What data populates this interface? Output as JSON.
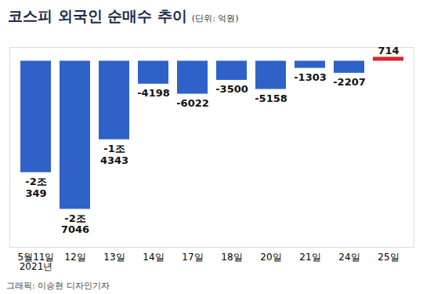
{
  "chart_data": {
    "type": "bar",
    "title": "코스피 외국인 순매수 추이",
    "subtitle": "(단위: 억원)",
    "caption": "그래픽: 이승현 디자인기자",
    "categories": [
      "5월11일\n2021년",
      "12일",
      "13일",
      "14일",
      "17일",
      "18일",
      "20일",
      "21일",
      "24일",
      "25일"
    ],
    "values": [
      -20349,
      -27046,
      -14343,
      -4198,
      -6022,
      -3500,
      -5158,
      -1303,
      -2207,
      714
    ],
    "value_labels": [
      "-2조\n349",
      "-2조\n7046",
      "-1조\n4343",
      "-4198",
      "-6022",
      "-3500",
      "-5158",
      "-1303",
      "-2207",
      "714"
    ],
    "colors": [
      "#2e62c8",
      "#2e62c8",
      "#2e62c8",
      "#2e62c8",
      "#2e62c8",
      "#2e62c8",
      "#2e62c8",
      "#2e62c8",
      "#2e62c8",
      "#d8262c"
    ],
    "ylim": [
      -34000,
      2500
    ],
    "data_labels": true,
    "tick_labels": "x",
    "grid": false
  }
}
